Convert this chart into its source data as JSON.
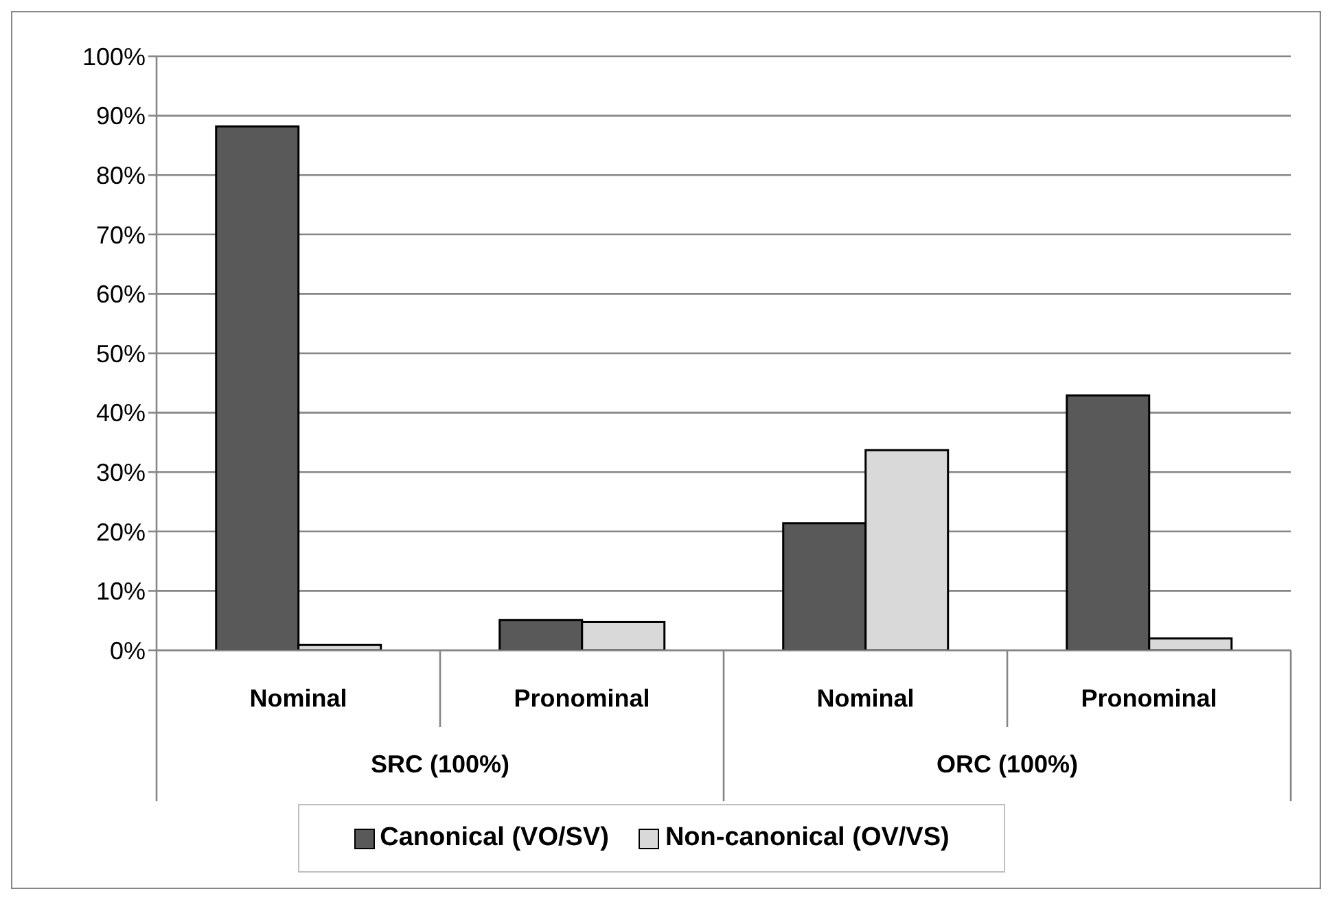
{
  "chart_data": {
    "type": "bar",
    "categories": [
      "Nominal",
      "Pronominal",
      "Nominal",
      "Pronominal"
    ],
    "series": [
      {
        "name": "Canonical (VO/SV)",
        "color": "#595959",
        "values": [
          88.2,
          5.1,
          21.4,
          42.9
        ]
      },
      {
        "name": "Non-canonical (OV/VS)",
        "color": "#d9d9d9",
        "values": [
          0.9,
          4.8,
          33.7,
          2.0
        ]
      }
    ],
    "annotations": [
      "SRC (100%)",
      "ORC (100%)"
    ],
    "ylim": [
      0,
      100
    ],
    "yticks": [
      {
        "value": 0,
        "label": "0%"
      },
      {
        "value": 10,
        "label": "10%"
      },
      {
        "value": 20,
        "label": "20%"
      },
      {
        "value": 30,
        "label": "30%"
      },
      {
        "value": 40,
        "label": "40%"
      },
      {
        "value": 50,
        "label": "50%"
      },
      {
        "value": 60,
        "label": "60%"
      },
      {
        "value": 70,
        "label": "70%"
      },
      {
        "value": 80,
        "label": "80%"
      },
      {
        "value": 90,
        "label": "90%"
      },
      {
        "value": 100,
        "label": "100%"
      }
    ],
    "grid": "y",
    "legend": "bottom"
  }
}
